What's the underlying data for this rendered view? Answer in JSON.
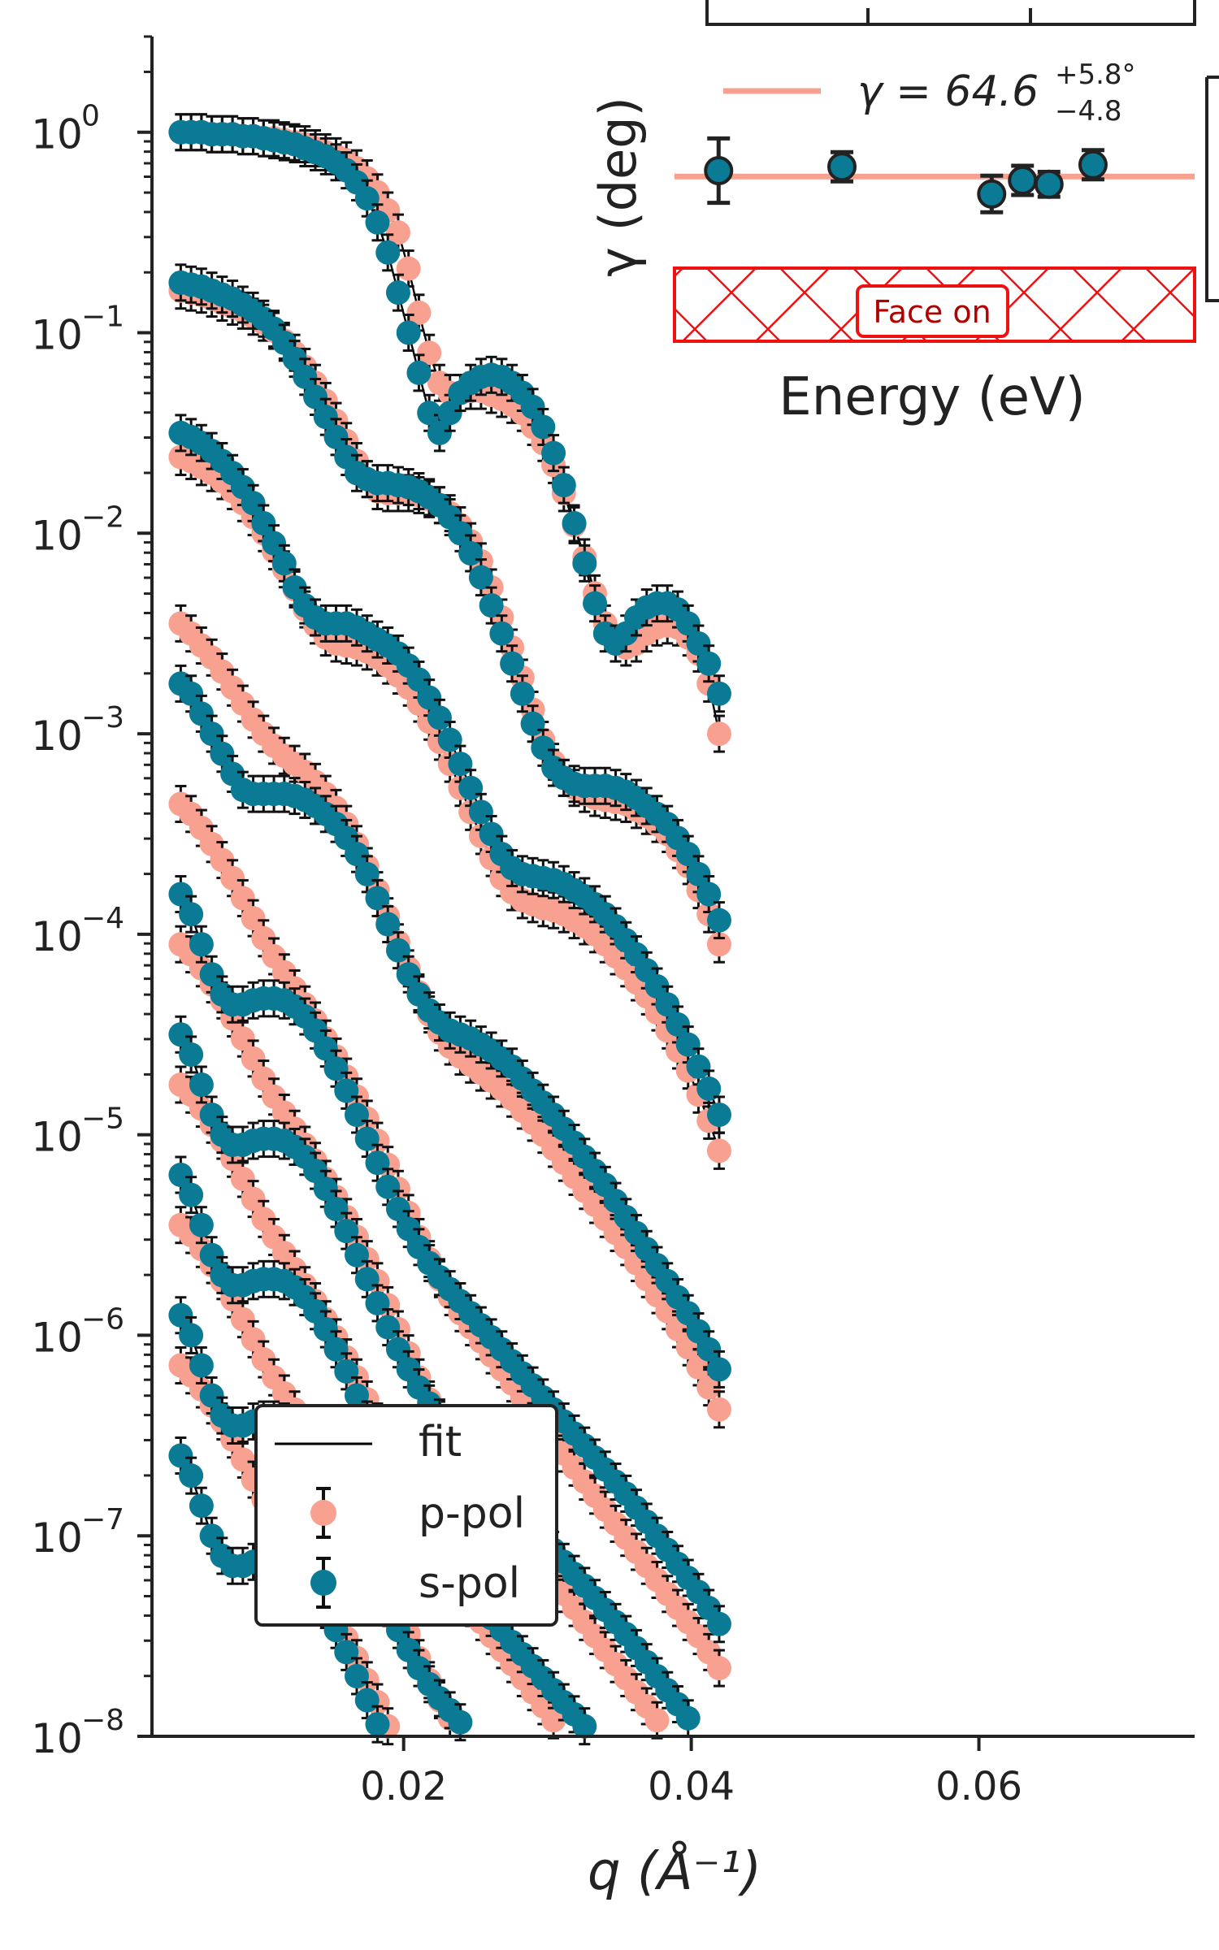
{
  "chart_data": {
    "type": "scatter",
    "title": "",
    "xlabel": "q (Å⁻¹)",
    "ylabel": "",
    "yscale": "log",
    "xlim": [
      0.0025,
      0.075
    ],
    "ylim": [
      1e-08,
      3
    ],
    "xticks": [
      {
        "value": 0.02,
        "label": "0.02"
      },
      {
        "value": 0.04,
        "label": "0.04"
      },
      {
        "value": 0.06,
        "label": "0.06"
      }
    ],
    "yticks": [
      {
        "exp": 0,
        "label": "10",
        "sup": "0"
      },
      {
        "exp": -1,
        "label": "10",
        "sup": "−1"
      },
      {
        "exp": -2,
        "label": "10",
        "sup": "−2"
      },
      {
        "exp": -3,
        "label": "10",
        "sup": "−3"
      },
      {
        "exp": -4,
        "label": "10",
        "sup": "−4"
      },
      {
        "exp": -5,
        "label": "10",
        "sup": "−5"
      },
      {
        "exp": -6,
        "label": "10",
        "sup": "−6"
      },
      {
        "exp": -7,
        "label": "10",
        "sup": "−7"
      },
      {
        "exp": -8,
        "label": "10",
        "sup": "−8"
      }
    ],
    "legend": {
      "position": "lower-left",
      "entries": [
        {
          "label": "fit",
          "marker": "line",
          "color": "#000000"
        },
        {
          "label": "p-pol",
          "marker": "circle",
          "color": "#F9A191"
        },
        {
          "label": "s-pol",
          "marker": "circle",
          "color": "#0B7A94"
        }
      ]
    },
    "colors": {
      "p_pol": "#F9A191",
      "s_pol": "#0B7A94",
      "fit": "#000000",
      "errorbar": "#111111"
    },
    "q_start": 0.0045,
    "q_step": 0.00072,
    "series": [
      {
        "s": [
          0.0,
          0.0,
          0.0,
          -0.01,
          -0.01,
          -0.01,
          -0.02,
          -0.02,
          -0.03,
          -0.04,
          -0.05,
          -0.06,
          -0.08,
          -0.1,
          -0.12,
          -0.15,
          -0.19,
          -0.25,
          -0.33,
          -0.45,
          -0.6,
          -0.8,
          -1.0,
          -1.2,
          -1.4,
          -1.5,
          -1.4,
          -1.3,
          -1.25,
          -1.22,
          -1.21,
          -1.22,
          -1.25,
          -1.3,
          -1.37,
          -1.47,
          -1.6,
          -1.76,
          -1.95,
          -2.15,
          -2.35,
          -2.5,
          -2.55,
          -2.5,
          -2.42,
          -2.37,
          -2.35,
          -2.35,
          -2.38,
          -2.45,
          -2.55,
          -2.65,
          -2.8
        ],
        "p": [
          0.0,
          0.0,
          0.0,
          -0.01,
          -0.01,
          -0.01,
          -0.02,
          -0.02,
          -0.03,
          -0.03,
          -0.04,
          -0.05,
          -0.06,
          -0.08,
          -0.1,
          -0.12,
          -0.14,
          -0.18,
          -0.23,
          -0.3,
          -0.39,
          -0.5,
          -0.68,
          -0.9,
          -1.1,
          -1.25,
          -1.3,
          -1.3,
          -1.29,
          -1.29,
          -1.31,
          -1.33,
          -1.36,
          -1.4,
          -1.47,
          -1.55,
          -1.66,
          -1.8,
          -1.96,
          -2.12,
          -2.3,
          -2.45,
          -2.55,
          -2.57,
          -2.55,
          -2.5,
          -2.47,
          -2.46,
          -2.47,
          -2.52,
          -2.6,
          -2.75,
          -3.0
        ]
      },
      {
        "s": [
          -0.75,
          -0.76,
          -0.77,
          -0.79,
          -0.81,
          -0.83,
          -0.86,
          -0.89,
          -0.93,
          -0.98,
          -1.05,
          -1.13,
          -1.22,
          -1.32,
          -1.42,
          -1.52,
          -1.62,
          -1.7,
          -1.73,
          -1.75,
          -1.75,
          -1.76,
          -1.77,
          -1.79,
          -1.82,
          -1.86,
          -1.92,
          -2.0,
          -2.1,
          -2.22,
          -2.36,
          -2.5,
          -2.65,
          -2.8,
          -2.95,
          -3.07,
          -3.17,
          -3.22,
          -3.25,
          -3.26,
          -3.26,
          -3.26,
          -3.27,
          -3.29,
          -3.32,
          -3.36,
          -3.4,
          -3.45,
          -3.52,
          -3.6,
          -3.7,
          -3.8,
          -3.93
        ],
        "p": [
          -0.79,
          -0.8,
          -0.81,
          -0.83,
          -0.85,
          -0.87,
          -0.89,
          -0.92,
          -0.95,
          -0.99,
          -1.04,
          -1.1,
          -1.17,
          -1.25,
          -1.34,
          -1.44,
          -1.54,
          -1.64,
          -1.73,
          -1.79,
          -1.8,
          -1.8,
          -1.8,
          -1.81,
          -1.83,
          -1.86,
          -1.9,
          -1.96,
          -2.04,
          -2.14,
          -2.27,
          -2.42,
          -2.57,
          -2.72,
          -2.88,
          -3.03,
          -3.14,
          -3.22,
          -3.27,
          -3.3,
          -3.32,
          -3.33,
          -3.34,
          -3.35,
          -3.38,
          -3.41,
          -3.45,
          -3.5,
          -3.58,
          -3.66,
          -3.78,
          -3.9,
          -4.05
        ]
      },
      {
        "s": [
          -1.5,
          -1.52,
          -1.55,
          -1.59,
          -1.64,
          -1.7,
          -1.77,
          -1.85,
          -1.95,
          -2.05,
          -2.15,
          -2.27,
          -2.36,
          -2.42,
          -2.45,
          -2.45,
          -2.45,
          -2.47,
          -2.5,
          -2.53,
          -2.56,
          -2.6,
          -2.66,
          -2.73,
          -2.82,
          -2.92,
          -3.03,
          -3.15,
          -3.27,
          -3.39,
          -3.5,
          -3.6,
          -3.67,
          -3.7,
          -3.71,
          -3.72,
          -3.73,
          -3.75,
          -3.78,
          -3.81,
          -3.85,
          -3.9,
          -3.96,
          -4.03,
          -4.1,
          -4.18,
          -4.26,
          -4.35,
          -4.45,
          -4.55,
          -4.66,
          -4.77,
          -4.9
        ],
        "p": [
          -1.62,
          -1.64,
          -1.67,
          -1.7,
          -1.74,
          -1.79,
          -1.85,
          -1.92,
          -2.0,
          -2.09,
          -2.18,
          -2.28,
          -2.38,
          -2.46,
          -2.52,
          -2.55,
          -2.56,
          -2.57,
          -2.59,
          -2.62,
          -2.66,
          -2.71,
          -2.77,
          -2.85,
          -2.94,
          -3.04,
          -3.15,
          -3.27,
          -3.39,
          -3.51,
          -3.62,
          -3.72,
          -3.79,
          -3.83,
          -3.85,
          -3.87,
          -3.88,
          -3.9,
          -3.93,
          -3.96,
          -4.0,
          -4.05,
          -4.11,
          -4.17,
          -4.24,
          -4.31,
          -4.39,
          -4.48,
          -4.58,
          -4.68,
          -4.8,
          -4.93,
          -5.08
        ]
      },
      {
        "s": [
          -2.75,
          -2.8,
          -2.9,
          -3.0,
          -3.1,
          -3.2,
          -3.28,
          -3.3,
          -3.3,
          -3.3,
          -3.3,
          -3.31,
          -3.33,
          -3.36,
          -3.4,
          -3.45,
          -3.52,
          -3.6,
          -3.7,
          -3.82,
          -3.95,
          -4.08,
          -4.2,
          -4.3,
          -4.38,
          -4.44,
          -4.48,
          -4.5,
          -4.52,
          -4.55,
          -4.58,
          -4.62,
          -4.66,
          -4.72,
          -4.78,
          -4.84,
          -4.9,
          -4.97,
          -5.04,
          -5.11,
          -5.18,
          -5.25,
          -5.33,
          -5.41,
          -5.49,
          -5.57,
          -5.65,
          -5.73,
          -5.81,
          -5.89,
          -5.98,
          -6.07,
          -6.17
        ],
        "p": [
          -2.45,
          -2.5,
          -2.56,
          -2.62,
          -2.69,
          -2.77,
          -2.85,
          -2.93,
          -3.0,
          -3.06,
          -3.11,
          -3.15,
          -3.19,
          -3.24,
          -3.3,
          -3.37,
          -3.45,
          -3.55,
          -3.66,
          -3.78,
          -3.91,
          -4.04,
          -4.17,
          -4.29,
          -4.4,
          -4.49,
          -4.56,
          -4.61,
          -4.65,
          -4.69,
          -4.73,
          -4.77,
          -4.82,
          -4.88,
          -4.94,
          -5.0,
          -5.07,
          -5.14,
          -5.21,
          -5.28,
          -5.35,
          -5.42,
          -5.49,
          -5.56,
          -5.64,
          -5.72,
          -5.8,
          -5.88,
          -5.97,
          -6.06,
          -6.16,
          -6.26,
          -6.37
        ]
      },
      {
        "s": [
          -3.8,
          -3.9,
          -4.05,
          -4.2,
          -4.3,
          -4.35,
          -4.35,
          -4.33,
          -4.32,
          -4.32,
          -4.33,
          -4.36,
          -4.41,
          -4.48,
          -4.57,
          -4.67,
          -4.78,
          -4.9,
          -5.02,
          -5.14,
          -5.26,
          -5.37,
          -5.47,
          -5.56,
          -5.64,
          -5.71,
          -5.77,
          -5.83,
          -5.89,
          -5.95,
          -6.01,
          -6.07,
          -6.13,
          -6.19,
          -6.25,
          -6.31,
          -6.37,
          -6.43,
          -6.49,
          -6.55,
          -6.61,
          -6.67,
          -6.73,
          -6.79,
          -6.86,
          -6.93,
          -7.0,
          -7.07,
          -7.14,
          -7.21,
          -7.28,
          -7.36,
          -7.44
        ],
        "p": [
          -3.35,
          -3.4,
          -3.47,
          -3.55,
          -3.63,
          -3.72,
          -3.82,
          -3.92,
          -4.02,
          -4.11,
          -4.19,
          -4.27,
          -4.35,
          -4.43,
          -4.52,
          -4.61,
          -4.71,
          -4.81,
          -4.92,
          -5.03,
          -5.15,
          -5.27,
          -5.39,
          -5.51,
          -5.62,
          -5.72,
          -5.81,
          -5.89,
          -5.96,
          -6.03,
          -6.1,
          -6.17,
          -6.24,
          -6.31,
          -6.38,
          -6.45,
          -6.52,
          -6.59,
          -6.66,
          -6.73,
          -6.8,
          -6.87,
          -6.94,
          -7.01,
          -7.08,
          -7.15,
          -7.22,
          -7.29,
          -7.36,
          -7.43,
          -7.5,
          -7.58,
          -7.66
        ]
      }
    ],
    "offsets": [
      0,
      -0.55,
      -1.1,
      -1.65,
      -2.2,
      -2.75,
      -3.3,
      -3.85,
      -4.4
    ],
    "shifts": [
      0.0,
      0.0,
      0.0,
      0.0,
      0.0,
      0.0,
      0.0,
      0.0,
      0.0
    ],
    "curves": [
      {
        "src": 0,
        "dy": 0.0,
        "dq": 0.0
      },
      {
        "src": 1,
        "dy": 0.0,
        "dq": 0.0
      },
      {
        "src": 2,
        "dy": 0.0,
        "dq": 0.0
      },
      {
        "src": 3,
        "dy": 0.0,
        "dq": 0.0
      },
      {
        "src": 4,
        "dy": 0.0,
        "dq": 0.0
      },
      {
        "src": 4,
        "dy": -0.7,
        "dq": 0.0
      },
      {
        "src": 4,
        "dy": -1.4,
        "dq": 0.0
      },
      {
        "src": 4,
        "dy": -2.1,
        "dq": 0.0
      },
      {
        "src": 4,
        "dy": -2.8,
        "dq": 0.0
      }
    ],
    "inset": {
      "ylabel": "γ (deg)",
      "xlabel": "Energy (eV)",
      "legend_label": "γ = 64.6",
      "legend_sup": "+5.8°",
      "legend_sub": "−4.8",
      "band_label": "Face on",
      "points": [
        {
          "x": 0.03,
          "err": 0.44
        },
        {
          "x": 0.31,
          "err": 0.2
        },
        {
          "x": 0.65,
          "err": 0.25
        },
        {
          "x": 0.72,
          "err": 0.2
        },
        {
          "x": 0.78,
          "err": 0.17
        },
        {
          "x": 0.88,
          "err": 0.2
        }
      ],
      "point_values": [
        0.5,
        0.52,
        0.38,
        0.45,
        0.43,
        0.53
      ],
      "line_value": 0.47
    }
  }
}
